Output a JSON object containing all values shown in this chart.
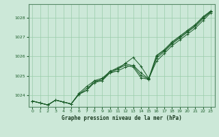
{
  "title": "Graphe pression niveau de la mer (hPa)",
  "background_color": "#cce8d8",
  "plot_bg_color": "#cce8d8",
  "grid_color": "#99ccaa",
  "line_color": "#1a5c28",
  "xlim": [
    -0.5,
    23.5
  ],
  "ylim": [
    1023.4,
    1028.7
  ],
  "yticks": [
    1024,
    1025,
    1026,
    1027,
    1028
  ],
  "xticks": [
    0,
    1,
    2,
    3,
    4,
    5,
    6,
    7,
    8,
    9,
    10,
    11,
    12,
    13,
    14,
    15,
    16,
    17,
    18,
    19,
    20,
    21,
    22,
    23
  ],
  "line1": [
    1023.7,
    1023.6,
    1023.5,
    1023.75,
    1023.65,
    1023.55,
    1024.05,
    1024.25,
    1024.65,
    1024.75,
    1025.15,
    1025.25,
    1025.45,
    1025.55,
    1025.15,
    1024.85,
    1025.75,
    1026.15,
    1026.55,
    1026.85,
    1027.15,
    1027.45,
    1027.85,
    1028.25
  ],
  "line2": [
    1023.7,
    1023.6,
    1023.5,
    1023.75,
    1023.65,
    1023.55,
    1024.05,
    1024.35,
    1024.65,
    1024.85,
    1025.15,
    1025.35,
    1025.55,
    1025.45,
    1024.9,
    1024.82,
    1025.9,
    1026.25,
    1026.65,
    1026.95,
    1027.25,
    1027.55,
    1027.95,
    1028.3
  ],
  "line3": [
    1023.7,
    1023.6,
    1023.5,
    1023.75,
    1023.65,
    1023.55,
    1024.05,
    1024.25,
    1024.75,
    1024.75,
    1025.25,
    1025.35,
    1025.65,
    1025.95,
    1025.5,
    1024.87,
    1026.05,
    1026.35,
    1026.75,
    1027.05,
    1027.35,
    1027.65,
    1028.05,
    1028.35
  ],
  "line4": [
    1023.7,
    1023.6,
    1023.5,
    1023.75,
    1023.65,
    1023.55,
    1024.1,
    1024.45,
    1024.75,
    1024.88,
    1025.22,
    1025.42,
    1025.62,
    1025.52,
    1025.02,
    1024.83,
    1026.0,
    1026.3,
    1026.7,
    1027.0,
    1027.3,
    1027.6,
    1028.0,
    1028.32
  ]
}
